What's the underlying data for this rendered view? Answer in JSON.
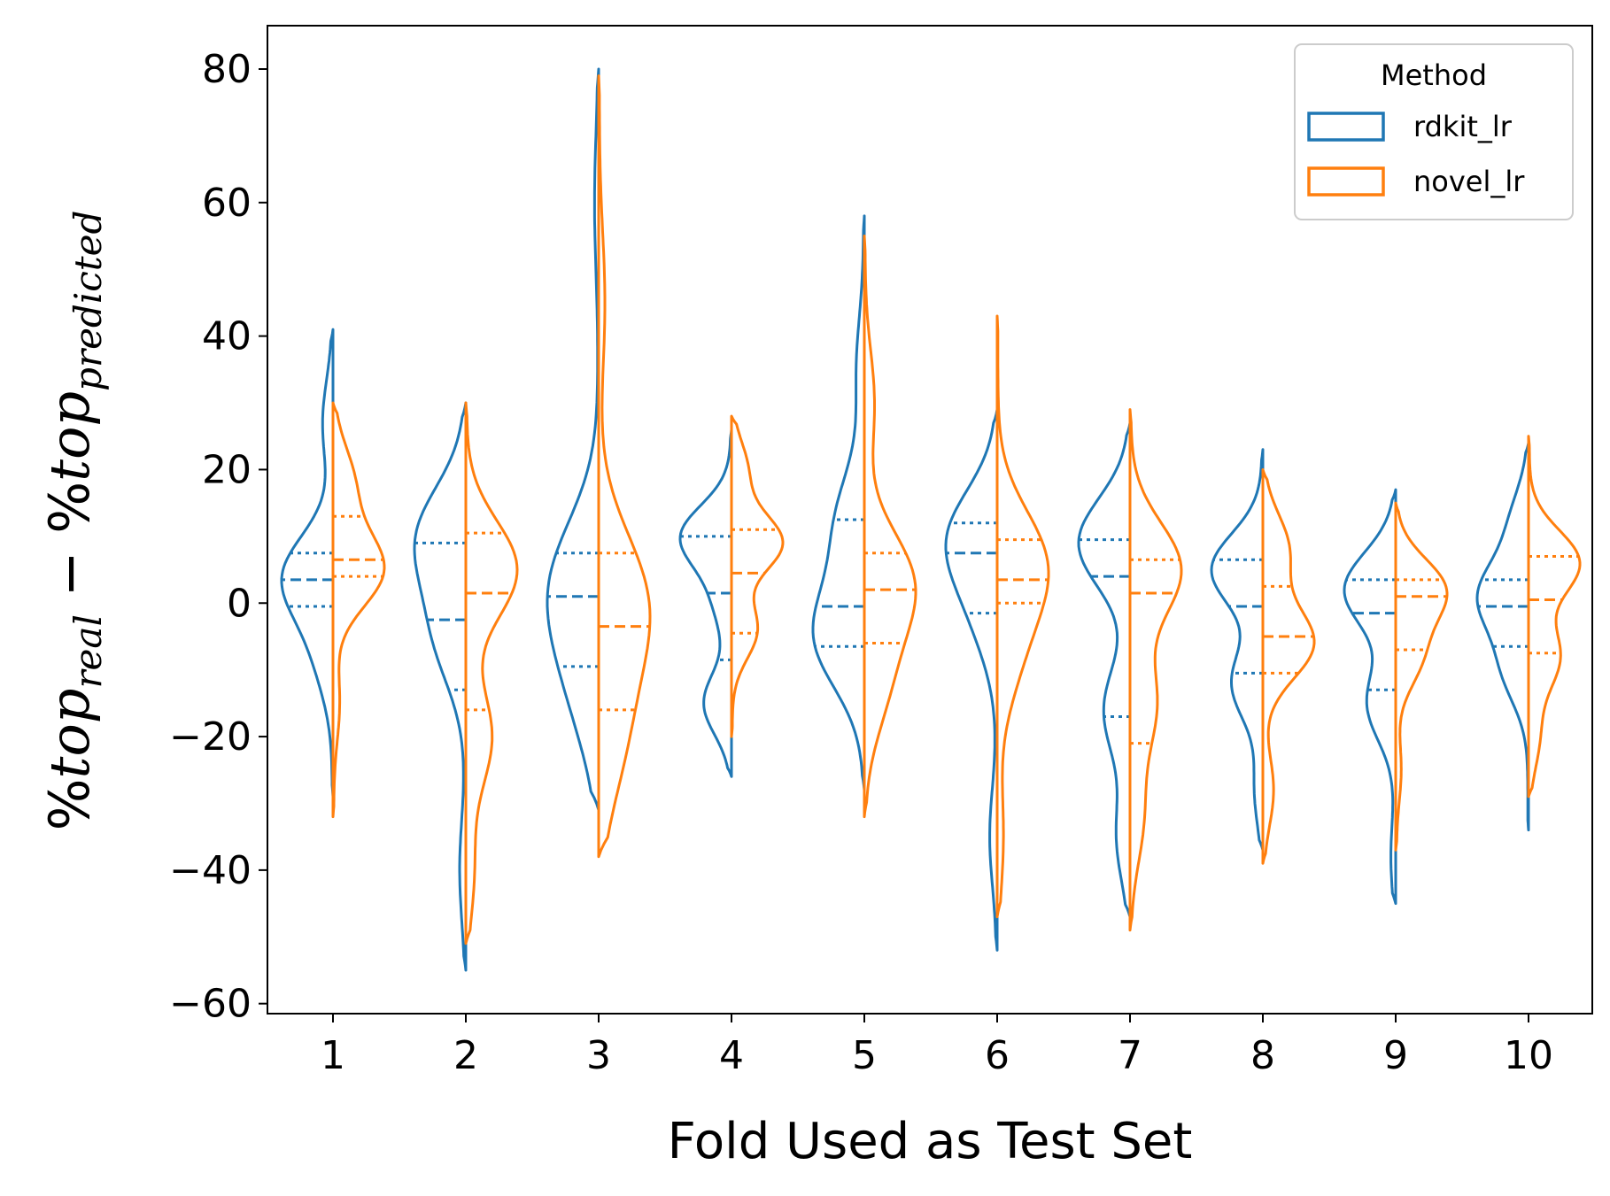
{
  "chart_data": {
    "type": "violin",
    "split": true,
    "xlabel": "Fold Used as Test Set",
    "ylabel": {
      "prefix1": "%",
      "word1": "top",
      "sub1": "real",
      "minus": " − ",
      "prefix2": "%",
      "word2": "top",
      "sub2": "predicted"
    },
    "ylim": [
      -61.5,
      86.5
    ],
    "yticks": [
      -60,
      -40,
      -20,
      0,
      20,
      40,
      60,
      80
    ],
    "ytick_labels": [
      "−60",
      "−40",
      "−20",
      "0",
      "20",
      "40",
      "60",
      "80"
    ],
    "categories": [
      "1",
      "2",
      "3",
      "4",
      "5",
      "6",
      "7",
      "8",
      "9",
      "10"
    ],
    "legend": {
      "title": "Method",
      "placement": "upper right"
    },
    "inner": "quartile",
    "series": [
      {
        "name": "rdkit_lr",
        "color": "#1f77b4",
        "folds": [
          {
            "min": -29,
            "max": 41,
            "q1": -0.5,
            "median": 3.5,
            "q3": 7.5,
            "modes": [
              [
                4,
                1.0
              ],
              [
                -8,
                0.3
              ],
              [
                27,
                0.2
              ]
            ]
          },
          {
            "min": -55,
            "max": 30,
            "q1": -13,
            "median": -2.5,
            "q3": 9,
            "modes": [
              [
                10,
                1.0
              ],
              [
                -5,
                0.6
              ],
              [
                -40,
                0.12
              ]
            ]
          },
          {
            "min": -31,
            "max": 80,
            "q1": -9.5,
            "median": 1,
            "q3": 7.5,
            "modes": [
              [
                3,
                1.0
              ],
              [
                -13,
                0.5
              ],
              [
                60,
                0.08
              ]
            ]
          },
          {
            "min": -26,
            "max": 26,
            "q1": -8.5,
            "median": 1.5,
            "q3": 10,
            "modes": [
              [
                10,
                1.0
              ],
              [
                -15,
                0.55
              ],
              [
                0,
                0.3
              ]
            ]
          },
          {
            "min": -28,
            "max": 58,
            "q1": -6.5,
            "median": -0.5,
            "q3": 12.5,
            "modes": [
              [
                -5,
                1.0
              ],
              [
                12,
                0.55
              ],
              [
                35,
                0.15
              ]
            ]
          },
          {
            "min": -52,
            "max": 29,
            "q1": -1.5,
            "median": 7.5,
            "q3": 12,
            "modes": [
              [
                10,
                1.0
              ],
              [
                -2,
                0.4
              ],
              [
                -35,
                0.15
              ]
            ]
          },
          {
            "min": -47,
            "max": 27,
            "q1": -17,
            "median": 4,
            "q3": 9.5,
            "modes": [
              [
                9,
                1.0
              ],
              [
                -16,
                0.5
              ],
              [
                -35,
                0.25
              ]
            ]
          },
          {
            "min": -37,
            "max": 23,
            "q1": -10.5,
            "median": -0.5,
            "q3": 6.5,
            "modes": [
              [
                5,
                1.0
              ],
              [
                -12,
                0.6
              ],
              [
                -28,
                0.15
              ]
            ]
          },
          {
            "min": -45,
            "max": 17,
            "q1": -13,
            "median": -1.5,
            "q3": 3.5,
            "modes": [
              [
                2,
                1.0
              ],
              [
                -15,
                0.55
              ],
              [
                -38,
                0.08
              ]
            ]
          },
          {
            "min": -34,
            "max": 24,
            "q1": -6.5,
            "median": -0.5,
            "q3": 3.5,
            "modes": [
              [
                1,
                1.0
              ],
              [
                -10,
                0.5
              ],
              [
                12,
                0.35
              ]
            ]
          }
        ]
      },
      {
        "name": "novel_lr",
        "color": "#ff7f0e",
        "folds": [
          {
            "min": -32,
            "max": 30,
            "q1": 4,
            "median": 6.5,
            "q3": 13,
            "modes": [
              [
                5,
                1.0
              ],
              [
                18,
                0.4
              ],
              [
                -15,
                0.12
              ]
            ]
          },
          {
            "min": -51,
            "max": 30,
            "q1": -16,
            "median": 1.5,
            "q3": 10.5,
            "modes": [
              [
                5,
                1.0
              ],
              [
                -20,
                0.5
              ],
              [
                -40,
                0.15
              ]
            ]
          },
          {
            "min": -38,
            "max": 79,
            "q1": -16,
            "median": -3.5,
            "q3": 7.5,
            "modes": [
              [
                0,
                1.0
              ],
              [
                -20,
                0.5
              ],
              [
                45,
                0.12
              ]
            ]
          },
          {
            "min": -20,
            "max": 28,
            "q1": -4.5,
            "median": 4.5,
            "q3": 11,
            "modes": [
              [
                9,
                1.0
              ],
              [
                -4,
                0.5
              ],
              [
                20,
                0.3
              ]
            ]
          },
          {
            "min": -32,
            "max": 55,
            "q1": -6,
            "median": 2,
            "q3": 7.5,
            "modes": [
              [
                3,
                1.0
              ],
              [
                -12,
                0.45
              ],
              [
                30,
                0.2
              ]
            ]
          },
          {
            "min": -47,
            "max": 43,
            "q1": 0,
            "median": 3.5,
            "q3": 9.5,
            "modes": [
              [
                6,
                1.0
              ],
              [
                -8,
                0.4
              ],
              [
                -35,
                0.12
              ]
            ]
          },
          {
            "min": -49,
            "max": 29,
            "q1": -21,
            "median": 1.5,
            "q3": 6.5,
            "modes": [
              [
                5,
                1.0
              ],
              [
                -15,
                0.5
              ],
              [
                -32,
                0.25
              ]
            ]
          },
          {
            "min": -39,
            "max": 20,
            "q1": -10.5,
            "median": -5,
            "q3": 2.5,
            "modes": [
              [
                -6,
                1.0
              ],
              [
                8,
                0.5
              ],
              [
                -28,
                0.2
              ]
            ]
          },
          {
            "min": -37,
            "max": 15,
            "q1": -7,
            "median": 1,
            "q3": 3.5,
            "modes": [
              [
                2,
                1.0
              ],
              [
                -8,
                0.5
              ],
              [
                -25,
                0.1
              ]
            ]
          },
          {
            "min": -29,
            "max": 25,
            "q1": -7.5,
            "median": 0.5,
            "q3": 7,
            "modes": [
              [
                6,
                1.0
              ],
              [
                -8,
                0.6
              ],
              [
                -20,
                0.2
              ]
            ]
          }
        ]
      }
    ]
  }
}
